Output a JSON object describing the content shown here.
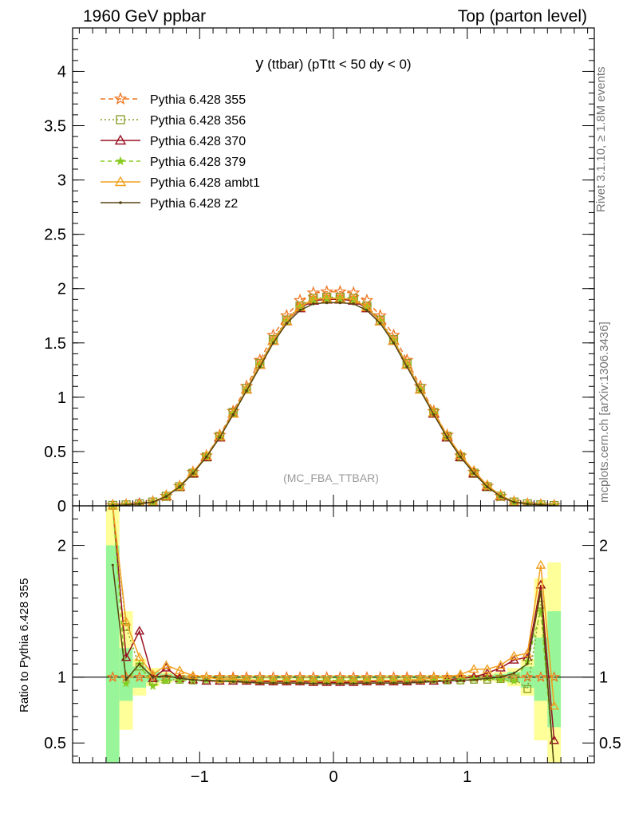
{
  "header": {
    "left": "1960 GeV ppbar",
    "right": "Top (parton level)"
  },
  "side_labels": {
    "rivet": "Rivet 3.1.10, ≥ 1.8M events",
    "mcplots": "mcplots.cern.ch [arXiv:1306.3436]"
  },
  "watermark": "(MC_FBA_TTBAR)",
  "ratio_ylabel": "Ratio to Pythia 6.428 355",
  "chart_data": [
    {
      "type": "line",
      "title": "y (ttbar) (pTtt < 50 dy < 0)",
      "title_main": "y",
      "title_rest": " (ttbar) (pTtt < 50 dy < 0)",
      "xlim": [
        -1.95,
        1.95
      ],
      "ylim": [
        0,
        4.4
      ],
      "yticks": [
        "0",
        "0.5",
        "1",
        "1.5",
        "2",
        "2.5",
        "3",
        "3.5",
        "4"
      ],
      "yticks_values": [
        0,
        0.5,
        1,
        1.5,
        2,
        2.5,
        3,
        3.5,
        4
      ],
      "x": [
        -1.65,
        -1.55,
        -1.45,
        -1.35,
        -1.25,
        -1.15,
        -1.05,
        -0.95,
        -0.85,
        -0.75,
        -0.65,
        -0.55,
        -0.45,
        -0.35,
        -0.25,
        -0.15,
        -0.05,
        0.05,
        0.15,
        0.25,
        0.35,
        0.45,
        0.55,
        0.65,
        0.75,
        0.85,
        0.95,
        1.05,
        1.15,
        1.25,
        1.35,
        1.45,
        1.55,
        1.65
      ],
      "series": [
        {
          "name": "Pythia 6.428 355",
          "color": "#ee7722",
          "dash": "6,4",
          "marker": "star",
          "values": [
            0.003,
            0.008,
            0.017,
            0.035,
            0.09,
            0.18,
            0.31,
            0.46,
            0.65,
            0.87,
            1.1,
            1.34,
            1.57,
            1.75,
            1.89,
            1.96,
            1.97,
            1.97,
            1.96,
            1.89,
            1.75,
            1.57,
            1.34,
            1.1,
            0.87,
            0.65,
            0.46,
            0.31,
            0.18,
            0.09,
            0.035,
            0.017,
            0.008,
            0.003
          ]
        },
        {
          "name": "Pythia 6.428 356",
          "color": "#889922",
          "dash": "2,3",
          "marker": "square",
          "values": [
            0.004,
            0.009,
            0.018,
            0.035,
            0.088,
            0.176,
            0.3,
            0.45,
            0.64,
            0.86,
            1.08,
            1.31,
            1.53,
            1.71,
            1.84,
            1.91,
            1.92,
            1.92,
            1.91,
            1.84,
            1.71,
            1.53,
            1.31,
            1.08,
            0.86,
            0.64,
            0.45,
            0.3,
            0.176,
            0.088,
            0.035,
            0.018,
            0.009,
            0.003
          ]
        },
        {
          "name": "Pythia 6.428 370",
          "color": "#991122",
          "dash": "",
          "marker": "triangle-open",
          "values": [
            0.004,
            0.009,
            0.023,
            0.035,
            0.09,
            0.178,
            0.3,
            0.45,
            0.63,
            0.85,
            1.07,
            1.3,
            1.52,
            1.7,
            1.82,
            1.89,
            1.9,
            1.9,
            1.89,
            1.82,
            1.7,
            1.52,
            1.3,
            1.07,
            0.85,
            0.63,
            0.45,
            0.3,
            0.178,
            0.09,
            0.035,
            0.017,
            0.009,
            0.002
          ]
        },
        {
          "name": "Pythia 6.428 379",
          "color": "#88cc22",
          "dash": "5,4",
          "marker": "star-small",
          "values": [
            0.004,
            0.008,
            0.018,
            0.032,
            0.086,
            0.175,
            0.3,
            0.45,
            0.63,
            0.85,
            1.07,
            1.3,
            1.52,
            1.7,
            1.83,
            1.9,
            1.91,
            1.91,
            1.9,
            1.83,
            1.7,
            1.52,
            1.3,
            1.07,
            0.85,
            0.63,
            0.45,
            0.3,
            0.175,
            0.087,
            0.033,
            0.017,
            0.009,
            0.003
          ]
        },
        {
          "name": "Pythia 6.428 ambt1",
          "color": "#f0a020",
          "dash": "",
          "marker": "triangle-open",
          "values": [
            0.004,
            0.009,
            0.018,
            0.036,
            0.094,
            0.182,
            0.31,
            0.46,
            0.64,
            0.85,
            1.07,
            1.3,
            1.52,
            1.7,
            1.83,
            1.9,
            1.91,
            1.91,
            1.9,
            1.83,
            1.7,
            1.52,
            1.3,
            1.07,
            0.86,
            0.65,
            0.47,
            0.32,
            0.19,
            0.095,
            0.038,
            0.019,
            0.011,
            0.002
          ]
        },
        {
          "name": "Pythia 6.428 z2",
          "color": "#554411",
          "dash": "",
          "marker": "dot",
          "values": [
            0.003,
            0.008,
            0.018,
            0.034,
            0.087,
            0.175,
            0.3,
            0.45,
            0.63,
            0.84,
            1.06,
            1.28,
            1.5,
            1.68,
            1.8,
            1.86,
            1.87,
            1.87,
            1.86,
            1.8,
            1.68,
            1.5,
            1.28,
            1.06,
            0.84,
            0.63,
            0.45,
            0.3,
            0.175,
            0.087,
            0.034,
            0.017,
            0.01,
            0.002
          ]
        }
      ]
    },
    {
      "type": "line",
      "ylabel": "Ratio to Pythia 6.428 355",
      "xlim": [
        -1.95,
        1.95
      ],
      "ylim": [
        0.35,
        2.3
      ],
      "xticks": [
        "−1",
        "0",
        "1"
      ],
      "xticks_values": [
        -1,
        0,
        1
      ],
      "yticks": [
        "0.5",
        "1",
        "2"
      ],
      "yticks_values": [
        0.5,
        1,
        2
      ],
      "bands": {
        "x": [
          -1.65,
          -1.55,
          -1.45,
          -1.35,
          -1.25,
          -1.15,
          -1.05,
          -0.95,
          -0.85,
          -0.75,
          -0.65,
          -0.55,
          -0.45,
          -0.35,
          -0.25,
          -0.15,
          -0.05,
          0.05,
          0.15,
          0.25,
          0.35,
          0.45,
          0.55,
          0.65,
          0.75,
          0.85,
          0.95,
          1.05,
          1.15,
          1.25,
          1.35,
          1.45,
          1.55,
          1.65
        ],
        "yellow_lo": [
          0.3,
          0.6,
          0.86,
          0.93,
          0.96,
          0.98,
          0.985,
          0.985,
          0.985,
          0.985,
          0.985,
          0.985,
          0.985,
          0.985,
          0.985,
          0.985,
          0.985,
          0.985,
          0.985,
          0.985,
          0.985,
          0.985,
          0.985,
          0.985,
          0.985,
          0.985,
          0.985,
          0.98,
          0.97,
          0.96,
          0.93,
          0.86,
          0.52,
          0.3
        ],
        "yellow_hi": [
          2.3,
          1.5,
          1.14,
          1.07,
          1.04,
          1.02,
          1.015,
          1.015,
          1.015,
          1.015,
          1.015,
          1.015,
          1.015,
          1.015,
          1.015,
          1.015,
          1.015,
          1.015,
          1.015,
          1.015,
          1.015,
          1.015,
          1.015,
          1.015,
          1.015,
          1.015,
          1.015,
          1.02,
          1.03,
          1.04,
          1.07,
          1.14,
          1.75,
          1.87
        ],
        "green_lo": [
          0.3,
          0.82,
          0.92,
          0.96,
          0.975,
          0.985,
          0.99,
          0.99,
          0.99,
          0.99,
          0.99,
          0.99,
          0.99,
          0.99,
          0.99,
          0.99,
          0.99,
          0.99,
          0.99,
          0.99,
          0.99,
          0.99,
          0.99,
          0.99,
          0.99,
          0.99,
          0.99,
          0.99,
          0.985,
          0.975,
          0.96,
          0.92,
          0.82,
          0.62
        ],
        "green_hi": [
          2.0,
          1.22,
          1.08,
          1.04,
          1.025,
          1.015,
          1.01,
          1.01,
          1.01,
          1.01,
          1.01,
          1.01,
          1.01,
          1.01,
          1.01,
          1.01,
          1.01,
          1.01,
          1.01,
          1.01,
          1.01,
          1.01,
          1.01,
          1.01,
          1.01,
          1.01,
          1.01,
          1.01,
          1.015,
          1.025,
          1.04,
          1.08,
          1.3,
          1.5
        ]
      },
      "x": [
        -1.65,
        -1.55,
        -1.45,
        -1.35,
        -1.25,
        -1.15,
        -1.05,
        -0.95,
        -0.85,
        -0.75,
        -0.65,
        -0.55,
        -0.45,
        -0.35,
        -0.25,
        -0.15,
        -0.05,
        0.05,
        0.15,
        0.25,
        0.35,
        0.45,
        0.55,
        0.65,
        0.75,
        0.85,
        0.95,
        1.05,
        1.15,
        1.25,
        1.35,
        1.45,
        1.55,
        1.65
      ],
      "series": [
        {
          "name": "Pythia 6.428 355",
          "color": "#ee7722",
          "dash": "6,4",
          "marker": "star",
          "values": [
            1,
            1,
            1,
            1,
            1,
            1,
            1,
            1,
            1,
            1,
            1,
            1,
            1,
            1,
            1,
            1,
            1,
            1,
            1,
            1,
            1,
            1,
            1,
            1,
            1,
            1,
            1,
            1,
            1,
            1,
            1,
            1,
            1,
            1
          ]
        },
        {
          "name": "Pythia 6.428 356",
          "color": "#889922",
          "dash": "2,3",
          "marker": "square",
          "values": [
            2.3,
            1.38,
            1.08,
            0.97,
            0.98,
            0.98,
            0.975,
            0.975,
            0.975,
            0.975,
            0.975,
            0.975,
            0.975,
            0.975,
            0.975,
            0.975,
            0.975,
            0.975,
            0.975,
            0.975,
            0.975,
            0.975,
            0.975,
            0.975,
            0.975,
            0.975,
            0.975,
            0.98,
            0.98,
            0.985,
            0.99,
            0.91,
            1.55,
            0.3
          ]
        },
        {
          "name": "Pythia 6.428 370",
          "color": "#991122",
          "dash": "",
          "marker": "triangle-open",
          "values": [
            2.3,
            1.15,
            1.35,
            0.99,
            1.07,
            0.99,
            0.98,
            0.97,
            0.97,
            0.97,
            0.97,
            0.965,
            0.965,
            0.965,
            0.965,
            0.96,
            0.96,
            0.96,
            0.96,
            0.965,
            0.965,
            0.965,
            0.965,
            0.97,
            0.97,
            0.98,
            0.99,
            1.0,
            1.03,
            1.07,
            1.13,
            1.15,
            1.7,
            0.52
          ]
        },
        {
          "name": "Pythia 6.428 379",
          "color": "#88cc22",
          "dash": "5,4",
          "marker": "star-small",
          "values": [
            2.3,
            0.95,
            1.1,
            0.93,
            0.97,
            0.975,
            0.975,
            0.975,
            0.975,
            0.975,
            0.975,
            0.975,
            0.975,
            0.975,
            0.975,
            0.975,
            0.975,
            0.975,
            0.975,
            0.975,
            0.975,
            0.975,
            0.975,
            0.975,
            0.975,
            0.975,
            0.98,
            0.985,
            0.99,
            0.98,
            0.97,
            1.12,
            1.5,
            0.3
          ]
        },
        {
          "name": "Pythia 6.428 ambt1",
          "color": "#f0a020",
          "dash": "",
          "marker": "triangle-open",
          "values": [
            2.3,
            1.42,
            1.15,
            1.02,
            1.09,
            1.05,
            1.01,
            1.0,
            0.985,
            0.985,
            0.98,
            0.975,
            0.975,
            0.975,
            0.975,
            0.97,
            0.97,
            0.97,
            0.97,
            0.975,
            0.975,
            0.975,
            0.98,
            0.98,
            0.995,
            1.0,
            1.02,
            1.06,
            1.06,
            1.09,
            1.16,
            1.18,
            1.85,
            0.78
          ]
        },
        {
          "name": "Pythia 6.428 z2",
          "color": "#554411",
          "dash": "",
          "marker": "dot",
          "values": [
            1.85,
            0.98,
            1.1,
            1.0,
            1.01,
            0.99,
            0.98,
            0.975,
            0.97,
            0.965,
            0.96,
            0.955,
            0.955,
            0.955,
            0.955,
            0.95,
            0.95,
            0.95,
            0.95,
            0.955,
            0.955,
            0.955,
            0.955,
            0.96,
            0.965,
            0.97,
            0.975,
            0.98,
            0.99,
            1.0,
            1.03,
            1.1,
            1.65,
            0.3
          ]
        }
      ]
    }
  ]
}
